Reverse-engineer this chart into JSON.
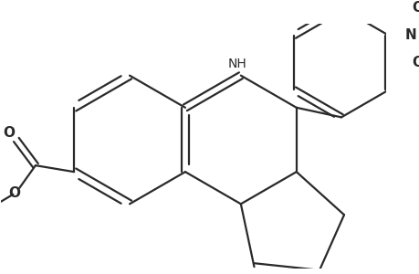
{
  "background": "#ffffff",
  "line_color": "#2a2a2a",
  "line_width": 1.6,
  "font_size": 10,
  "figsize": [
    4.6,
    3.0
  ],
  "dpi": 100,
  "xlim": [
    -0.5,
    5.5
  ],
  "ylim": [
    -0.3,
    3.5
  ]
}
